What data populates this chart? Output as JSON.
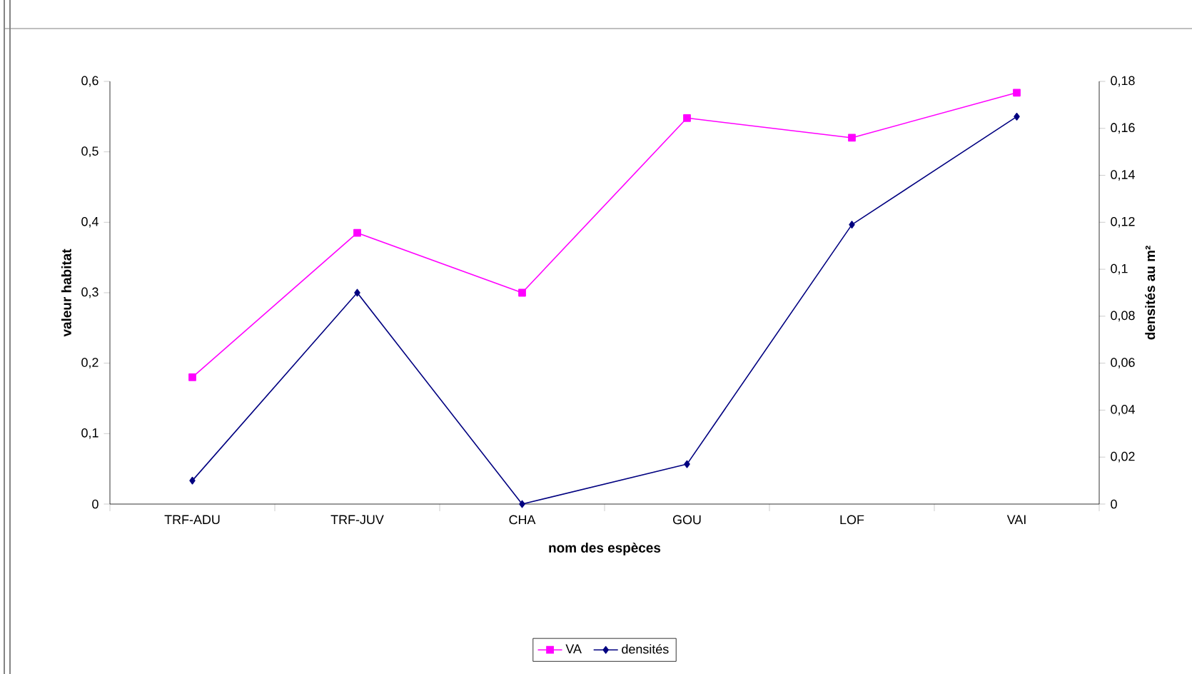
{
  "chart_data": {
    "type": "line",
    "xlabel": "nom des espèces",
    "ylabel": "valeur habitat",
    "y2label": "densités au m²",
    "categories": [
      "TRF-ADU",
      "TRF-JUV",
      "CHA",
      "GOU",
      "LOF",
      "VAI"
    ],
    "series": [
      {
        "name": "VA",
        "color": "#ff00ff",
        "marker": "square",
        "values": [
          0.18,
          0.385,
          0.3,
          0.548,
          0.52,
          0.584
        ]
      },
      {
        "name": "densités",
        "color": "#000080",
        "marker": "diamond",
        "axis": "y2",
        "values": [
          0.01,
          0.09,
          0,
          0.017,
          0.119,
          0.165
        ]
      }
    ],
    "ylim": [
      0,
      0.6
    ],
    "yticks": [
      {
        "value": 0,
        "label": "0"
      },
      {
        "value": 0.1,
        "label": "0,1"
      },
      {
        "value": 0.2,
        "label": "0,2"
      },
      {
        "value": 0.3,
        "label": "0,3"
      },
      {
        "value": 0.4,
        "label": "0,4"
      },
      {
        "value": 0.5,
        "label": "0,5"
      },
      {
        "value": 0.6,
        "label": "0,6"
      }
    ],
    "y2lim": [
      0,
      0.18
    ],
    "y2ticks": [
      {
        "value": 0,
        "label": "0"
      },
      {
        "value": 0.02,
        "label": "0,02"
      },
      {
        "value": 0.04,
        "label": "0,04"
      },
      {
        "value": 0.06,
        "label": "0,06"
      },
      {
        "value": 0.08,
        "label": "0,08"
      },
      {
        "value": 0.1,
        "label": "0,1"
      },
      {
        "value": 0.12,
        "label": "0,12"
      },
      {
        "value": 0.14,
        "label": "0,14"
      },
      {
        "value": 0.16,
        "label": "0,16"
      },
      {
        "value": 0.18,
        "label": "0,18"
      }
    ],
    "grid": false,
    "legend": "bottom",
    "line_style": "solid"
  }
}
